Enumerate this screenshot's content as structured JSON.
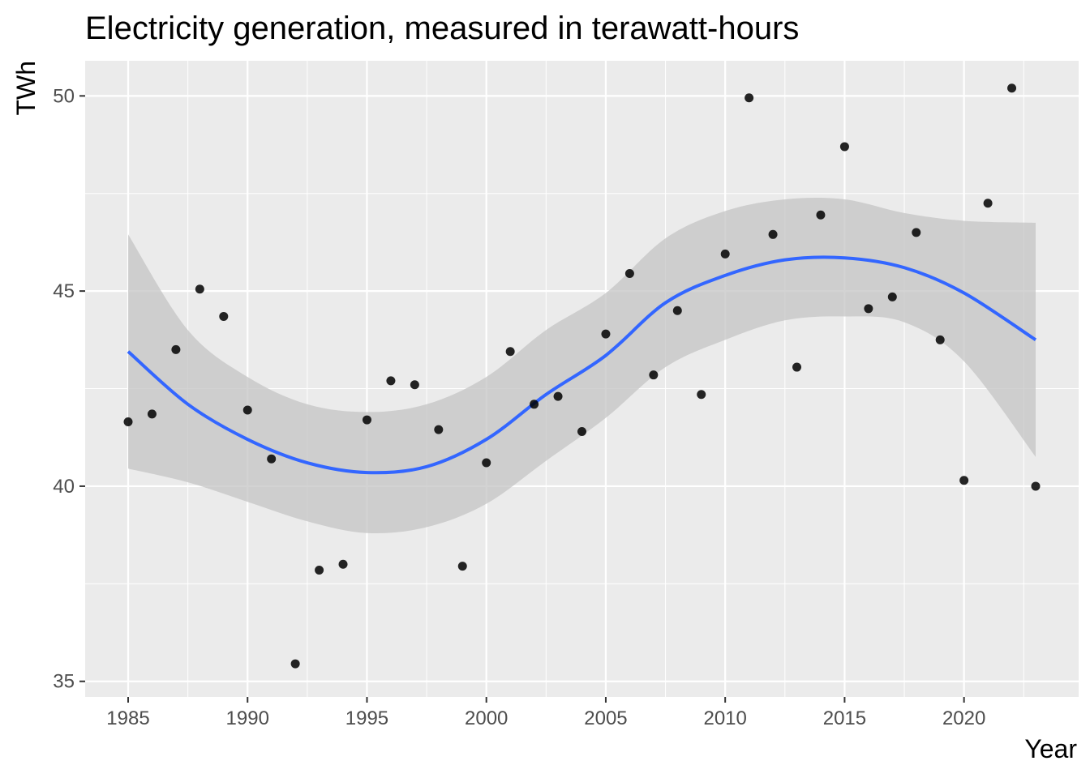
{
  "chart_data": {
    "type": "scatter",
    "title": "Electricity generation, measured in terawatt-hours",
    "xlabel": "Year",
    "ylabel": "TWh",
    "xlim": [
      1983.2,
      2024.8
    ],
    "ylim": [
      34.6,
      50.9
    ],
    "x_ticks": [
      1985,
      1990,
      1995,
      2000,
      2005,
      2010,
      2015,
      2020
    ],
    "y_ticks": [
      35,
      40,
      45,
      50
    ],
    "grid": true,
    "panel_background": "#ebebeb",
    "grid_color": "#ffffff",
    "point_color": "#000000",
    "smooth_color": "#3366ff",
    "ribbon_color": "#c4c4c4",
    "points": [
      {
        "x": 1985,
        "y": 41.65
      },
      {
        "x": 1986,
        "y": 41.85
      },
      {
        "x": 1987,
        "y": 43.5
      },
      {
        "x": 1988,
        "y": 45.05
      },
      {
        "x": 1989,
        "y": 44.35
      },
      {
        "x": 1990,
        "y": 41.95
      },
      {
        "x": 1991,
        "y": 40.7
      },
      {
        "x": 1992,
        "y": 35.45
      },
      {
        "x": 1993,
        "y": 37.85
      },
      {
        "x": 1994,
        "y": 38.0
      },
      {
        "x": 1995,
        "y": 41.7
      },
      {
        "x": 1996,
        "y": 42.7
      },
      {
        "x": 1997,
        "y": 42.6
      },
      {
        "x": 1998,
        "y": 41.45
      },
      {
        "x": 1999,
        "y": 37.95
      },
      {
        "x": 2000,
        "y": 40.6
      },
      {
        "x": 2001,
        "y": 43.45
      },
      {
        "x": 2002,
        "y": 42.1
      },
      {
        "x": 2003,
        "y": 42.3
      },
      {
        "x": 2004,
        "y": 41.4
      },
      {
        "x": 2005,
        "y": 43.9
      },
      {
        "x": 2006,
        "y": 45.45
      },
      {
        "x": 2007,
        "y": 42.85
      },
      {
        "x": 2008,
        "y": 44.5
      },
      {
        "x": 2009,
        "y": 42.35
      },
      {
        "x": 2010,
        "y": 45.95
      },
      {
        "x": 2011,
        "y": 49.95
      },
      {
        "x": 2012,
        "y": 46.45
      },
      {
        "x": 2013,
        "y": 43.05
      },
      {
        "x": 2014,
        "y": 46.95
      },
      {
        "x": 2015,
        "y": 48.7
      },
      {
        "x": 2016,
        "y": 44.55
      },
      {
        "x": 2017,
        "y": 44.85
      },
      {
        "x": 2018,
        "y": 46.5
      },
      {
        "x": 2019,
        "y": 43.75
      },
      {
        "x": 2020,
        "y": 40.15
      },
      {
        "x": 2021,
        "y": 47.25
      },
      {
        "x": 2022,
        "y": 50.2
      },
      {
        "x": 2023,
        "y": 40.0
      }
    ],
    "smooth_fit": [
      {
        "x": 1985,
        "y": 43.45,
        "lower": 40.45,
        "upper": 46.45
      },
      {
        "x": 1987.5,
        "y": 42.1,
        "lower": 40.1,
        "upper": 44.0
      },
      {
        "x": 1990,
        "y": 41.2,
        "lower": 39.6,
        "upper": 42.8
      },
      {
        "x": 1992.5,
        "y": 40.6,
        "lower": 39.1,
        "upper": 42.1
      },
      {
        "x": 1995,
        "y": 40.35,
        "lower": 38.8,
        "upper": 41.9
      },
      {
        "x": 1997.5,
        "y": 40.5,
        "lower": 38.95,
        "upper": 42.1
      },
      {
        "x": 2000,
        "y": 41.2,
        "lower": 39.55,
        "upper": 42.8
      },
      {
        "x": 2002.5,
        "y": 42.35,
        "lower": 40.65,
        "upper": 44.0
      },
      {
        "x": 2005,
        "y": 43.35,
        "lower": 41.75,
        "upper": 44.95
      },
      {
        "x": 2007.5,
        "y": 44.7,
        "lower": 43.05,
        "upper": 46.35
      },
      {
        "x": 2010,
        "y": 45.4,
        "lower": 43.75,
        "upper": 47.05
      },
      {
        "x": 2012.5,
        "y": 45.8,
        "lower": 44.25,
        "upper": 47.35
      },
      {
        "x": 2015,
        "y": 45.85,
        "lower": 44.35,
        "upper": 47.35
      },
      {
        "x": 2017.5,
        "y": 45.6,
        "lower": 44.2,
        "upper": 47.0
      },
      {
        "x": 2020,
        "y": 44.95,
        "lower": 43.2,
        "upper": 46.8
      },
      {
        "x": 2023,
        "y": 43.75,
        "lower": 40.75,
        "upper": 46.75
      }
    ]
  }
}
